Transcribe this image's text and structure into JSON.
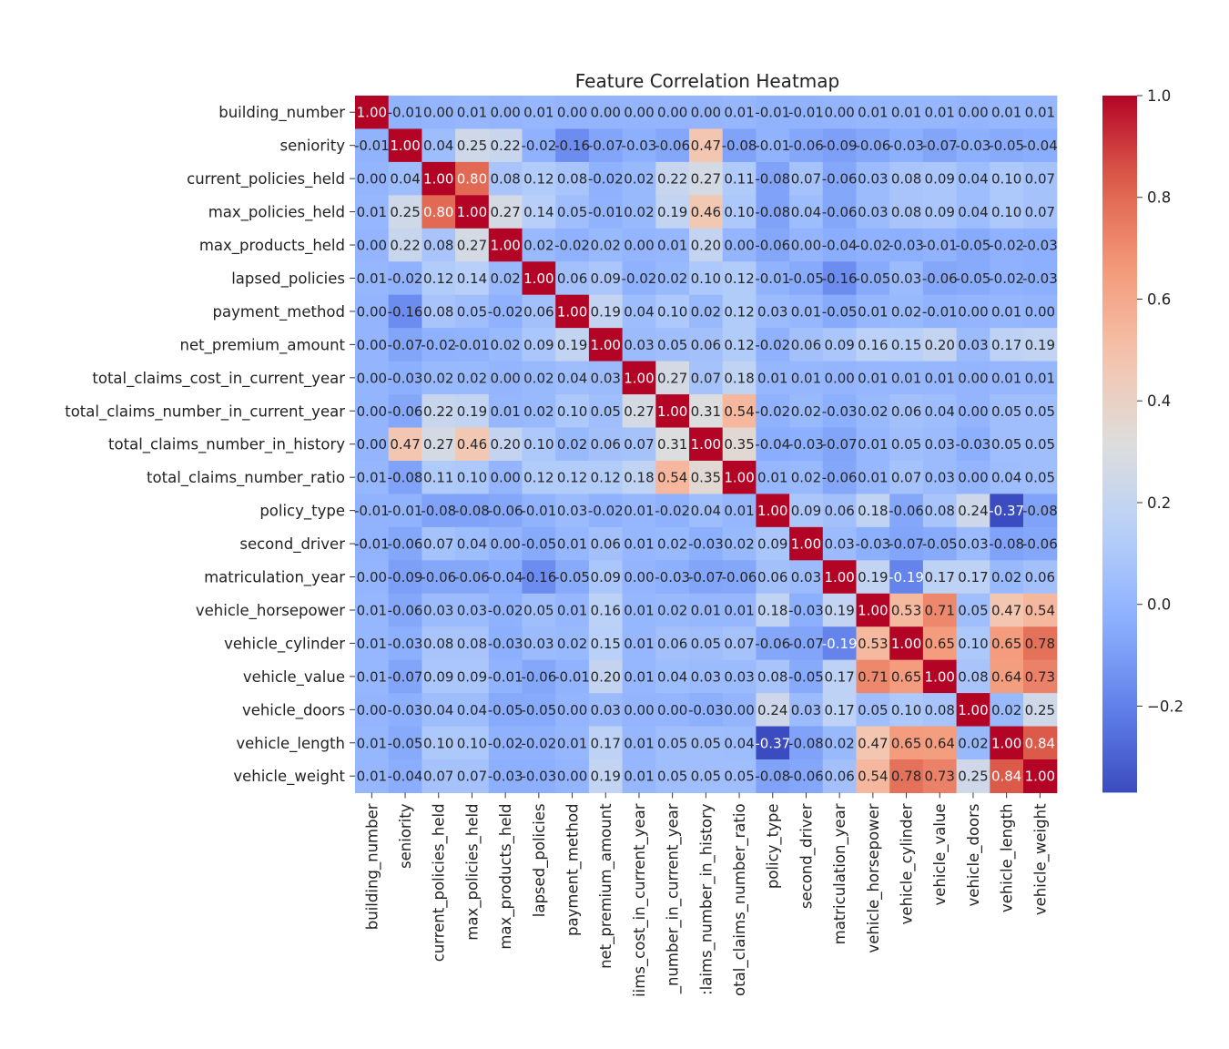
{
  "chart_data": {
    "type": "heatmap",
    "title": "Feature Correlation Heatmap",
    "xlabel": "",
    "ylabel": "",
    "colormap": "coolwarm",
    "vmin": -0.37,
    "vmax": 1.0,
    "labels": [
      "building_number",
      "seniority",
      "current_policies_held",
      "max_policies_held",
      "max_products_held",
      "lapsed_policies",
      "payment_method",
      "net_premium_amount",
      "total_claims_cost_in_current_year",
      "total_claims_number_in_current_year",
      "total_claims_number_in_history",
      "total_claims_number_ratio",
      "policy_type",
      "second_driver",
      "matriculation_year",
      "vehicle_horsepower",
      "vehicle_cylinder",
      "vehicle_value",
      "vehicle_doors",
      "vehicle_length",
      "vehicle_weight"
    ],
    "x_tick_labels": [
      "building_number",
      "seniority",
      "current_policies_held",
      "max_policies_held",
      "max_products_held",
      "lapsed_policies",
      "payment_method",
      "net_premium_amount",
      "iims_cost_in_current_year",
      "_number_in_current_year",
      ":laims_number_in_history",
      "otal_claims_number_ratio",
      "policy_type",
      "second_driver",
      "matriculation_year",
      "vehicle_horsepower",
      "vehicle_cylinder",
      "vehicle_value",
      "vehicle_doors",
      "vehicle_length",
      "vehicle_weight"
    ],
    "matrix": [
      [
        1.0,
        -0.01,
        0.0,
        0.01,
        -0.0,
        0.01,
        0.0,
        -0.0,
        0.0,
        0.0,
        -0.0,
        0.01,
        -0.01,
        -0.01,
        0.0,
        0.01,
        0.01,
        0.01,
        -0.0,
        0.01,
        0.01
      ],
      [
        -0.01,
        1.0,
        0.04,
        0.25,
        0.22,
        -0.02,
        -0.16,
        -0.07,
        -0.03,
        -0.06,
        0.47,
        -0.08,
        -0.01,
        -0.06,
        -0.09,
        -0.06,
        -0.03,
        -0.07,
        -0.03,
        -0.05,
        -0.04
      ],
      [
        0.0,
        0.04,
        1.0,
        0.8,
        0.08,
        0.12,
        0.08,
        -0.02,
        0.02,
        0.22,
        0.27,
        0.11,
        -0.08,
        0.07,
        -0.06,
        0.03,
        0.08,
        0.09,
        0.04,
        0.1,
        0.07
      ],
      [
        0.01,
        0.25,
        0.8,
        1.0,
        0.27,
        0.14,
        0.05,
        -0.01,
        0.02,
        0.19,
        0.46,
        0.1,
        -0.08,
        0.04,
        -0.06,
        0.03,
        0.08,
        0.09,
        0.04,
        0.1,
        0.07
      ],
      [
        -0.0,
        0.22,
        0.08,
        0.27,
        1.0,
        0.02,
        -0.02,
        0.02,
        -0.0,
        0.01,
        0.2,
        -0.0,
        -0.06,
        -0.0,
        -0.04,
        -0.02,
        -0.03,
        -0.01,
        -0.05,
        -0.02,
        -0.03
      ],
      [
        0.01,
        -0.02,
        0.12,
        0.14,
        0.02,
        1.0,
        0.06,
        0.09,
        -0.02,
        0.02,
        0.1,
        0.12,
        -0.01,
        -0.05,
        -0.16,
        -0.05,
        0.03,
        -0.06,
        -0.05,
        -0.02,
        -0.03
      ],
      [
        -0.0,
        -0.16,
        0.08,
        0.05,
        -0.02,
        0.06,
        1.0,
        0.19,
        0.04,
        0.1,
        0.02,
        0.12,
        0.03,
        0.01,
        -0.05,
        0.01,
        0.02,
        -0.01,
        0.0,
        0.01,
        0.0
      ],
      [
        -0.0,
        -0.07,
        -0.02,
        -0.01,
        0.02,
        0.09,
        0.19,
        1.0,
        0.03,
        0.05,
        0.06,
        0.12,
        -0.02,
        0.06,
        0.09,
        0.16,
        0.15,
        0.2,
        0.03,
        0.17,
        0.19
      ],
      [
        0.0,
        -0.03,
        0.02,
        0.02,
        -0.0,
        0.02,
        0.04,
        0.03,
        1.0,
        0.27,
        0.07,
        0.18,
        0.01,
        0.01,
        -0.0,
        0.01,
        0.01,
        0.01,
        -0.0,
        0.01,
        0.01
      ],
      [
        0.0,
        -0.06,
        0.22,
        0.19,
        0.01,
        0.02,
        0.1,
        0.05,
        0.27,
        1.0,
        0.31,
        0.54,
        -0.02,
        0.02,
        -0.03,
        0.02,
        0.06,
        0.04,
        0.0,
        0.05,
        0.05
      ],
      [
        -0.0,
        0.47,
        0.27,
        0.46,
        0.2,
        0.1,
        0.02,
        0.06,
        0.07,
        0.31,
        1.0,
        0.35,
        -0.04,
        -0.03,
        -0.07,
        0.01,
        0.05,
        0.03,
        -0.03,
        0.05,
        0.05
      ],
      [
        0.01,
        -0.08,
        0.11,
        0.1,
        -0.0,
        0.12,
        0.12,
        0.12,
        0.18,
        0.54,
        0.35,
        1.0,
        0.01,
        0.02,
        -0.06,
        0.01,
        0.07,
        0.03,
        -0.0,
        0.04,
        0.05
      ],
      [
        -0.01,
        -0.01,
        -0.08,
        -0.08,
        -0.06,
        -0.01,
        0.03,
        -0.02,
        0.01,
        -0.02,
        0.04,
        0.01,
        1.0,
        0.09,
        0.06,
        0.18,
        -0.06,
        0.08,
        0.24,
        -0.37,
        -0.08
      ],
      [
        -0.01,
        -0.06,
        0.07,
        0.04,
        -0.0,
        -0.05,
        0.01,
        0.06,
        0.01,
        0.02,
        -0.03,
        0.02,
        0.09,
        1.0,
        0.03,
        -0.03,
        -0.07,
        -0.05,
        0.03,
        -0.08,
        -0.06
      ],
      [
        0.0,
        -0.09,
        -0.06,
        -0.06,
        -0.04,
        -0.16,
        -0.05,
        0.09,
        -0.0,
        -0.03,
        -0.07,
        -0.06,
        0.06,
        0.03,
        1.0,
        0.19,
        -0.19,
        0.17,
        0.17,
        0.02,
        0.06
      ],
      [
        0.01,
        -0.06,
        0.03,
        0.03,
        -0.02,
        0.05,
        0.01,
        0.16,
        0.01,
        0.02,
        0.01,
        0.01,
        0.18,
        -0.03,
        0.19,
        1.0,
        0.53,
        0.71,
        0.05,
        0.47,
        0.54
      ],
      [
        0.01,
        -0.03,
        0.08,
        0.08,
        -0.03,
        0.03,
        0.02,
        0.15,
        0.01,
        0.06,
        0.05,
        0.07,
        -0.06,
        -0.07,
        -0.19,
        0.53,
        1.0,
        0.65,
        0.1,
        0.65,
        0.78
      ],
      [
        0.01,
        -0.07,
        0.09,
        0.09,
        -0.01,
        -0.06,
        -0.01,
        0.2,
        0.01,
        0.04,
        0.03,
        0.03,
        0.08,
        -0.05,
        0.17,
        0.71,
        0.65,
        1.0,
        0.08,
        0.64,
        0.73
      ],
      [
        -0.0,
        -0.03,
        0.04,
        0.04,
        -0.05,
        -0.05,
        0.0,
        0.03,
        -0.0,
        0.0,
        -0.03,
        0.0,
        0.24,
        0.03,
        0.17,
        0.05,
        0.1,
        0.08,
        1.0,
        0.02,
        0.25
      ],
      [
        0.01,
        -0.05,
        0.1,
        0.1,
        -0.02,
        -0.02,
        0.01,
        0.17,
        0.01,
        0.05,
        0.05,
        0.04,
        -0.37,
        -0.08,
        0.02,
        0.47,
        0.65,
        0.64,
        0.02,
        1.0,
        0.84
      ],
      [
        0.01,
        -0.04,
        0.07,
        0.07,
        -0.03,
        -0.03,
        0.0,
        0.19,
        0.01,
        0.05,
        0.05,
        0.05,
        -0.08,
        -0.06,
        0.06,
        0.54,
        0.78,
        0.73,
        0.25,
        0.84,
        1.0
      ]
    ],
    "colorbar_ticks": [
      "1.0",
      "0.8",
      "0.6",
      "0.4",
      "0.2",
      "0.0",
      "−0.2"
    ],
    "colorbar_tick_values": [
      1.0,
      0.8,
      0.6,
      0.4,
      0.2,
      0.0,
      -0.2
    ],
    "grid": false,
    "legend": "colorbar-right"
  }
}
